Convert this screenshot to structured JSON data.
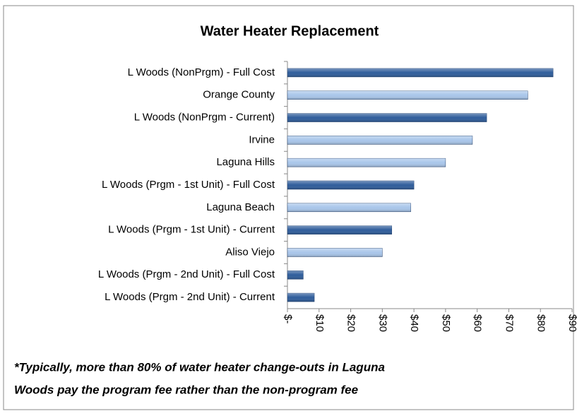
{
  "chart_data": {
    "type": "hbar",
    "title": "Water Heater Replacement",
    "categories": [
      "L Woods (NonPrgm) - Full Cost",
      "Orange County",
      "L Woods (NonPrgm - Current)",
      "Irvine",
      "Laguna Hills",
      "L Woods (Prgm - 1st Unit) - Full Cost",
      "Laguna Beach",
      "L Woods (Prgm - 1st Unit) - Current",
      "Aliso Viejo",
      "L Woods (Prgm - 2nd Unit) - Full Cost",
      "L Woods (Prgm - 2nd Unit) - Current"
    ],
    "values": [
      84,
      76,
      63,
      58.5,
      50,
      40,
      39,
      33,
      30,
      5,
      8.5
    ],
    "colors": [
      "#2f5d9b",
      "#a9c6ea",
      "#2f5d9b",
      "#a9c6ea",
      "#a9c6ea",
      "#2f5d9b",
      "#a9c6ea",
      "#2f5d9b",
      "#a9c6ea",
      "#2f5d9b",
      "#2f5d9b"
    ],
    "xlim": [
      0,
      90
    ],
    "xticks": [
      {
        "value": 0,
        "label": "$-"
      },
      {
        "value": 10,
        "label": "$10"
      },
      {
        "value": 20,
        "label": "$20"
      },
      {
        "value": 30,
        "label": "$30"
      },
      {
        "value": 40,
        "label": "$40"
      },
      {
        "value": 50,
        "label": "$50"
      },
      {
        "value": 60,
        "label": "$60"
      },
      {
        "value": 70,
        "label": "$70"
      },
      {
        "value": 80,
        "label": "$80"
      },
      {
        "value": 90,
        "label": "$90"
      }
    ],
    "footnote": [
      "*Typically, more than 80% of water heater change-outs in Laguna",
      "Woods pay the program fee rather than the non-program fee"
    ]
  }
}
